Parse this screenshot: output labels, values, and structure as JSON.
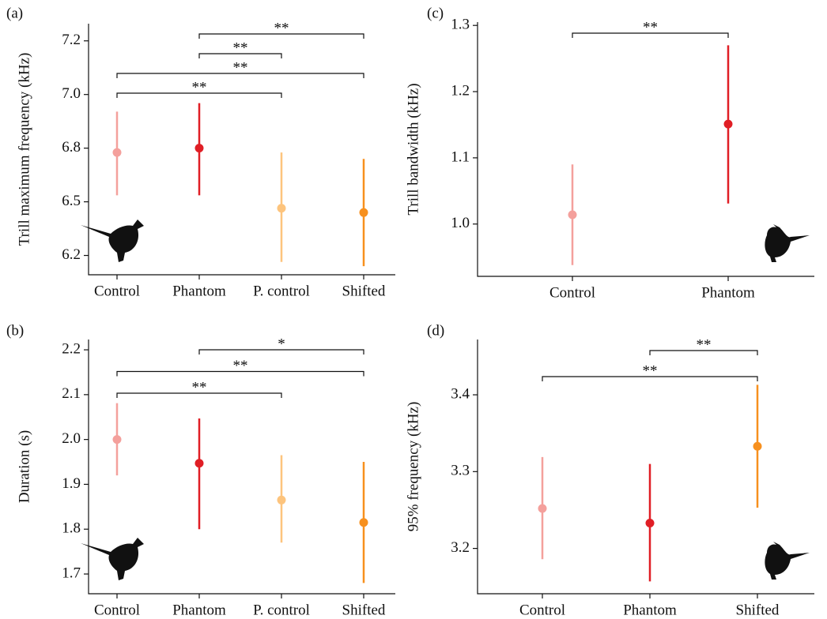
{
  "chart_data": [
    {
      "type": "pointrange",
      "panel": "(a)",
      "ylabel": "Trill maximum frequency (kHz)",
      "categories": [
        "Control",
        "Phantom",
        "P. control",
        "Shifted"
      ],
      "values": [
        6.73,
        6.75,
        6.47,
        6.45
      ],
      "lower": [
        6.53,
        6.53,
        6.22,
        6.2
      ],
      "upper": [
        6.92,
        6.96,
        6.73,
        6.7
      ],
      "colors": [
        "#f4a09c",
        "#e01e25",
        "#fdc47d",
        "#f7901e"
      ],
      "ylim": [
        6.16,
        7.33
      ],
      "yticks": [
        {
          "value": 6.25,
          "label": "6.2"
        },
        6.5,
        {
          "value": 6.75,
          "label": "6.8"
        },
        {
          "value": 7.0,
          "label": "7.0"
        },
        {
          "value": 7.25,
          "label": "7.2"
        }
      ],
      "comparisons": [
        {
          "from": 1,
          "to": 3,
          "label": "**"
        },
        {
          "from": 1,
          "to": 2,
          "label": "**"
        },
        {
          "from": 0,
          "to": 3,
          "label": "**"
        },
        {
          "from": 0,
          "to": 2,
          "label": "**"
        }
      ]
    },
    {
      "type": "pointrange",
      "panel": "(c)",
      "ylabel": "Trill bandwidth (kHz)",
      "categories": [
        "Control",
        "Phantom"
      ],
      "values": [
        1.014,
        1.151
      ],
      "lower": [
        0.938,
        1.031
      ],
      "upper": [
        1.09,
        1.27
      ],
      "colors": [
        "#f4a09c",
        "#e01e25"
      ],
      "ylim": [
        0.921,
        1.305
      ],
      "yticks": [
        {
          "value": 1.0,
          "label": "1.0"
        },
        1.1,
        1.2,
        1.3
      ],
      "comparisons": [
        {
          "from": 0,
          "to": 1,
          "label": "**"
        }
      ]
    },
    {
      "type": "pointrange",
      "panel": "(b)",
      "ylabel": "Duration (s)",
      "categories": [
        "Control",
        "Phantom",
        "P. control",
        "Shifted"
      ],
      "values": [
        2.0,
        1.947,
        1.865,
        1.815
      ],
      "lower": [
        1.92,
        1.8,
        1.77,
        1.68
      ],
      "upper": [
        2.081,
        2.047,
        1.965,
        1.95
      ],
      "colors": [
        "#f4a09c",
        "#e01e25",
        "#fdc47d",
        "#f7901e"
      ],
      "ylim": [
        1.656,
        2.223
      ],
      "yticks": [
        1.7,
        1.8,
        1.9,
        {
          "value": 2.0,
          "label": "2.0"
        },
        2.1,
        2.2
      ],
      "comparisons": [
        {
          "from": 1,
          "to": 3,
          "label": "*"
        },
        {
          "from": 0,
          "to": 3,
          "label": "**"
        },
        {
          "from": 0,
          "to": 2,
          "label": "**"
        }
      ]
    },
    {
      "type": "pointrange",
      "panel": "(d)",
      "ylabel": "95% frequency (kHz)",
      "categories": [
        "Control",
        "Phantom",
        "Shifted"
      ],
      "values": [
        3.252,
        3.233,
        3.333
      ],
      "lower": [
        3.186,
        3.157,
        3.253
      ],
      "upper": [
        3.319,
        3.31,
        3.413
      ],
      "colors": [
        "#f4a09c",
        "#e01e25",
        "#f7901e"
      ],
      "ylim": [
        3.141,
        3.472
      ],
      "yticks": [
        3.2,
        3.3,
        3.4
      ],
      "comparisons": [
        {
          "from": 1,
          "to": 2,
          "label": "**"
        },
        {
          "from": 0,
          "to": 2,
          "label": "**"
        }
      ]
    }
  ]
}
